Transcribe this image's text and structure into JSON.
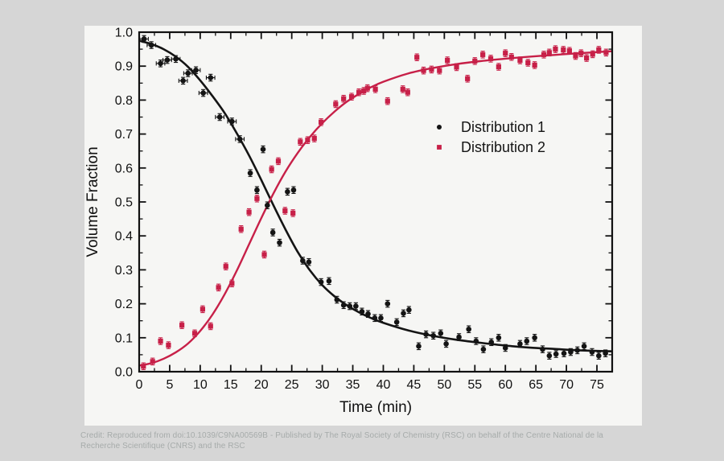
{
  "page": {
    "background_color": "#d6d6d6",
    "card_color": "#f6f6f4"
  },
  "credit": {
    "line1": "Credit: Reproduced from doi:10.1039/C9NA00569B - Published by The Royal Society of Chemistry (RSC) on behalf of the Centre National de la",
    "line2": "Recherche Scientifique (CNRS) and the RSC"
  },
  "chart_data": {
    "type": "scatter",
    "title": "",
    "xlabel": "Time (min)",
    "ylabel": "Volume Fraction",
    "xlim": [
      0,
      77.5
    ],
    "ylim": [
      0,
      1.0
    ],
    "x_major_ticks": [
      0,
      5,
      10,
      15,
      20,
      25,
      30,
      35,
      40,
      45,
      50,
      55,
      60,
      65,
      70,
      75
    ],
    "x_minor_step": 2.5,
    "y_major_ticks": [
      0,
      0.1,
      0.2,
      0.3,
      0.4,
      0.5,
      0.6,
      0.7,
      0.8,
      0.9,
      1.0
    ],
    "y_tick_labels": [
      "0.0",
      "0.1",
      "0.2",
      "0.3",
      "0.4",
      "0.5",
      "0.6",
      "0.7",
      "0.8",
      "0.9",
      "1.0"
    ],
    "y_minor_step": 0.05,
    "grid": false,
    "legend": {
      "position": "inside-right",
      "items": [
        {
          "label": "Distribution 1",
          "color": "#141414",
          "marker": "circle"
        },
        {
          "label": "Distribution 2",
          "color": "#c72048",
          "marker": "square"
        }
      ]
    },
    "axis_color": "#111111",
    "series": [
      {
        "name": "Distribution 1",
        "marker": "circle",
        "color": "#141414",
        "yerr": 0.01,
        "xerr": 0.7,
        "xerr_max_t": 16.5,
        "points": [
          [
            0.8,
            0.98
          ],
          [
            2.0,
            0.962
          ],
          [
            3.5,
            0.908
          ],
          [
            4.6,
            0.918
          ],
          [
            6.0,
            0.921
          ],
          [
            7.2,
            0.857
          ],
          [
            8.0,
            0.879
          ],
          [
            9.3,
            0.888
          ],
          [
            10.5,
            0.821
          ],
          [
            11.7,
            0.866
          ],
          [
            13.2,
            0.75
          ],
          [
            15.2,
            0.737
          ],
          [
            16.5,
            0.685
          ],
          [
            18.2,
            0.585
          ],
          [
            19.3,
            0.535
          ],
          [
            20.3,
            0.655
          ],
          [
            21.0,
            0.49
          ],
          [
            21.9,
            0.41
          ],
          [
            23.0,
            0.38
          ],
          [
            24.3,
            0.53
          ],
          [
            25.3,
            0.535
          ],
          [
            26.8,
            0.327
          ],
          [
            27.8,
            0.323
          ],
          [
            29.8,
            0.264
          ],
          [
            31.1,
            0.267
          ],
          [
            32.4,
            0.212
          ],
          [
            33.5,
            0.196
          ],
          [
            34.5,
            0.193
          ],
          [
            35.5,
            0.193
          ],
          [
            36.5,
            0.177
          ],
          [
            37.5,
            0.17
          ],
          [
            38.6,
            0.158
          ],
          [
            39.6,
            0.158
          ],
          [
            40.7,
            0.2
          ],
          [
            42.2,
            0.146
          ],
          [
            43.3,
            0.172
          ],
          [
            44.2,
            0.182
          ],
          [
            45.8,
            0.075
          ],
          [
            47.0,
            0.11
          ],
          [
            48.2,
            0.106
          ],
          [
            49.4,
            0.113
          ],
          [
            50.3,
            0.082
          ],
          [
            52.4,
            0.102
          ],
          [
            54.0,
            0.125
          ],
          [
            55.2,
            0.09
          ],
          [
            56.4,
            0.066
          ],
          [
            57.7,
            0.087
          ],
          [
            58.9,
            0.1
          ],
          [
            60.0,
            0.07
          ],
          [
            62.4,
            0.082
          ],
          [
            63.5,
            0.09
          ],
          [
            64.8,
            0.1
          ],
          [
            66.1,
            0.066
          ],
          [
            67.2,
            0.047
          ],
          [
            68.3,
            0.052
          ],
          [
            69.6,
            0.054
          ],
          [
            70.7,
            0.058
          ],
          [
            71.8,
            0.063
          ],
          [
            72.9,
            0.075
          ],
          [
            74.2,
            0.058
          ],
          [
            75.3,
            0.047
          ],
          [
            76.4,
            0.054
          ]
        ],
        "fit_curve": [
          [
            0,
            0.975
          ],
          [
            2,
            0.965
          ],
          [
            4,
            0.95
          ],
          [
            6,
            0.928
          ],
          [
            8,
            0.898
          ],
          [
            10,
            0.858
          ],
          [
            12,
            0.812
          ],
          [
            14,
            0.762
          ],
          [
            16,
            0.702
          ],
          [
            18,
            0.637
          ],
          [
            20,
            0.565
          ],
          [
            22,
            0.49
          ],
          [
            24,
            0.418
          ],
          [
            26,
            0.352
          ],
          [
            28,
            0.298
          ],
          [
            30,
            0.255
          ],
          [
            32,
            0.222
          ],
          [
            34,
            0.196
          ],
          [
            36,
            0.175
          ],
          [
            38,
            0.158
          ],
          [
            40,
            0.144
          ],
          [
            44,
            0.122
          ],
          [
            48,
            0.106
          ],
          [
            52,
            0.094
          ],
          [
            56,
            0.085
          ],
          [
            60,
            0.077
          ],
          [
            64,
            0.071
          ],
          [
            68,
            0.067
          ],
          [
            72,
            0.063
          ],
          [
            77.5,
            0.06
          ]
        ]
      },
      {
        "name": "Distribution 2",
        "marker": "square",
        "color": "#c72048",
        "yerr": 0.01,
        "xerr": 0,
        "xerr_max_t": 0,
        "points": [
          [
            0.7,
            0.016
          ],
          [
            2.2,
            0.03
          ],
          [
            3.5,
            0.09
          ],
          [
            4.8,
            0.078
          ],
          [
            7.0,
            0.137
          ],
          [
            9.1,
            0.113
          ],
          [
            10.4,
            0.184
          ],
          [
            11.7,
            0.134
          ],
          [
            13.0,
            0.248
          ],
          [
            14.2,
            0.31
          ],
          [
            15.2,
            0.26
          ],
          [
            16.7,
            0.42
          ],
          [
            18.0,
            0.47
          ],
          [
            19.3,
            0.51
          ],
          [
            20.5,
            0.345
          ],
          [
            21.7,
            0.596
          ],
          [
            22.8,
            0.62
          ],
          [
            23.9,
            0.474
          ],
          [
            25.2,
            0.467
          ],
          [
            26.4,
            0.677
          ],
          [
            27.6,
            0.682
          ],
          [
            28.7,
            0.687
          ],
          [
            29.8,
            0.735
          ],
          [
            32.2,
            0.788
          ],
          [
            33.5,
            0.804
          ],
          [
            34.8,
            0.81
          ],
          [
            36.0,
            0.823
          ],
          [
            36.8,
            0.827
          ],
          [
            37.4,
            0.835
          ],
          [
            38.7,
            0.832
          ],
          [
            40.7,
            0.797
          ],
          [
            43.2,
            0.832
          ],
          [
            44.0,
            0.823
          ],
          [
            45.5,
            0.926
          ],
          [
            46.6,
            0.887
          ],
          [
            47.9,
            0.89
          ],
          [
            49.2,
            0.887
          ],
          [
            50.5,
            0.917
          ],
          [
            52.0,
            0.897
          ],
          [
            53.8,
            0.863
          ],
          [
            55.0,
            0.915
          ],
          [
            56.3,
            0.934
          ],
          [
            57.6,
            0.922
          ],
          [
            58.9,
            0.898
          ],
          [
            60.0,
            0.938
          ],
          [
            61.0,
            0.927
          ],
          [
            62.4,
            0.917
          ],
          [
            63.7,
            0.91
          ],
          [
            64.8,
            0.903
          ],
          [
            66.3,
            0.934
          ],
          [
            67.2,
            0.94
          ],
          [
            68.2,
            0.95
          ],
          [
            69.5,
            0.948
          ],
          [
            70.5,
            0.945
          ],
          [
            71.5,
            0.93
          ],
          [
            72.4,
            0.938
          ],
          [
            73.3,
            0.924
          ],
          [
            74.3,
            0.935
          ],
          [
            75.3,
            0.948
          ],
          [
            76.5,
            0.94
          ]
        ],
        "fit_curve": [
          [
            0,
            0.018
          ],
          [
            2,
            0.025
          ],
          [
            4,
            0.038
          ],
          [
            6,
            0.057
          ],
          [
            8,
            0.083
          ],
          [
            10,
            0.12
          ],
          [
            12,
            0.168
          ],
          [
            14,
            0.228
          ],
          [
            16,
            0.298
          ],
          [
            18,
            0.375
          ],
          [
            20,
            0.452
          ],
          [
            22,
            0.525
          ],
          [
            24,
            0.59
          ],
          [
            26,
            0.645
          ],
          [
            28,
            0.692
          ],
          [
            30,
            0.732
          ],
          [
            32,
            0.766
          ],
          [
            34,
            0.795
          ],
          [
            36,
            0.818
          ],
          [
            38,
            0.838
          ],
          [
            40,
            0.854
          ],
          [
            44,
            0.878
          ],
          [
            48,
            0.894
          ],
          [
            52,
            0.906
          ],
          [
            56,
            0.915
          ],
          [
            60,
            0.922
          ],
          [
            64,
            0.928
          ],
          [
            68,
            0.933
          ],
          [
            72,
            0.938
          ],
          [
            77.5,
            0.944
          ]
        ]
      }
    ]
  }
}
